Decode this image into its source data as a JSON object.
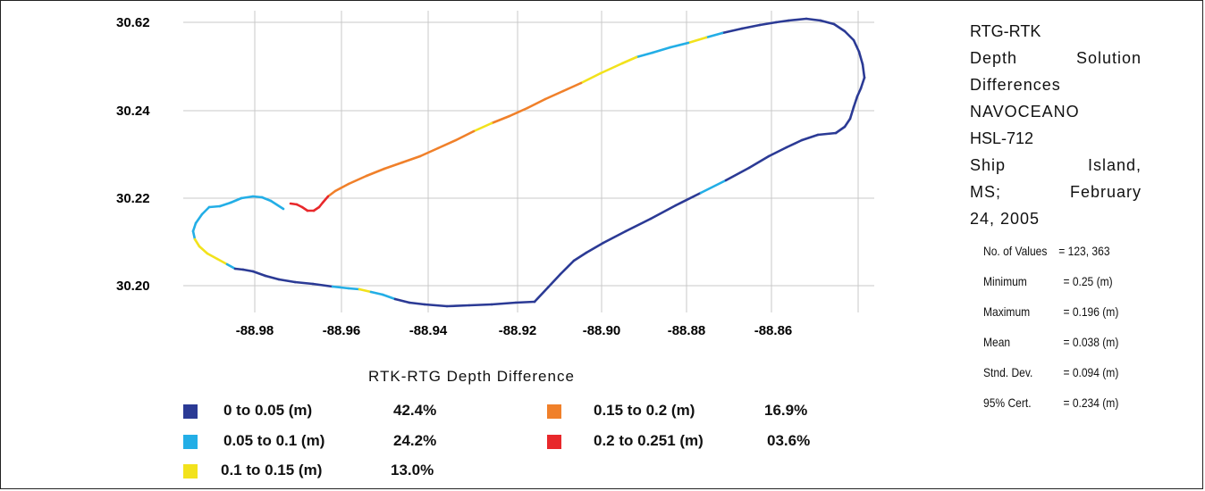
{
  "chart_data": {
    "type": "scatter",
    "title": "",
    "xlabel": "",
    "ylabel": "",
    "x_ticks": [
      "-88.98",
      "-88.96",
      "-88.94",
      "-88.92",
      "-88.90",
      "-88.88",
      "-88.86"
    ],
    "y_ticks": [
      "30.62",
      "30.24",
      "30.22",
      "30.20"
    ],
    "grid": true,
    "legend_title": "RTK-RTG Depth Difference",
    "legend": [
      {
        "label": "0 to 0.05 (m)",
        "percent": "42.4%",
        "color": "#2b3a95"
      },
      {
        "label": "0.05 to 0.1 (m)",
        "percent": "24.2%",
        "color": "#23aee6"
      },
      {
        "label": "0.1 to 0.15 (m)",
        "percent": "13.0%",
        "color": "#f2e21c"
      },
      {
        "label": "0.15 to 0.2 (m)",
        "percent": "16.9%",
        "color": "#f0802a"
      },
      {
        "label": "0.2 to 0.251 (m)",
        "percent": "03.6%",
        "color": "#e8282b"
      }
    ]
  },
  "title_block": {
    "lines": [
      "RTG-RTK",
      "Depth Solution",
      "Differences",
      "NAVOCEANO",
      "HSL-712",
      "Ship Island,",
      "MS; February",
      "24, 2005"
    ]
  },
  "stats": [
    {
      "label": "No. of Values",
      "value": "= 123, 363"
    },
    {
      "label": "Minimum",
      "value": "= 0.25 (m)"
    },
    {
      "label": "Maximum",
      "value": "= 0.196 (m)"
    },
    {
      "label": "Mean",
      "value": "= 0.038 (m)"
    },
    {
      "label": "Stnd. Dev.",
      "value": "= 0.094 (m)"
    },
    {
      "label": "95% Cert.",
      "value": "= 0.234 (m)"
    }
  ]
}
